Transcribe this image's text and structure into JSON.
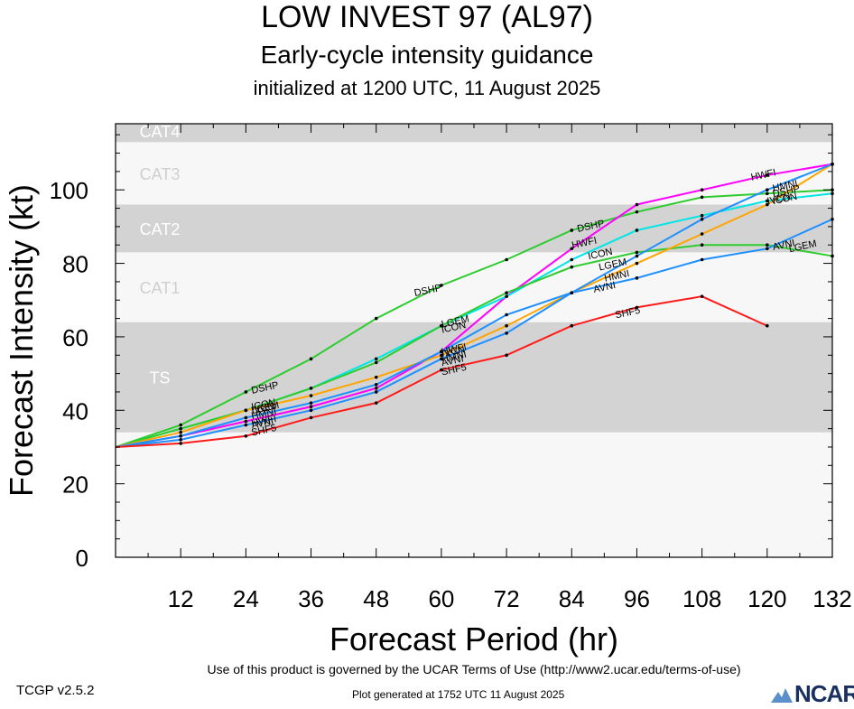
{
  "header": {
    "title": "LOW INVEST 97 (AL97)",
    "subtitle": "Early-cycle intensity guidance",
    "init": "initialized at 1200 UTC, 11 August 2025"
  },
  "footer": {
    "terms": "Use of this product is governed by the UCAR Terms of Use (http://www2.ucar.edu/terms-of-use)",
    "version": "TCGP v2.5.2",
    "generated": "Plot generated at 1752 UTC   11 August 2025",
    "logo_text": "NCAR"
  },
  "chart_data": {
    "type": "line",
    "xlabel": "Forecast Period (hr)",
    "ylabel": "Forecast Intensity (kt)",
    "xlim": [
      0,
      132
    ],
    "ylim": [
      0,
      118
    ],
    "xticks": [
      12,
      24,
      36,
      48,
      60,
      72,
      84,
      96,
      108,
      120,
      132
    ],
    "yticks": [
      0,
      20,
      40,
      60,
      80,
      100
    ],
    "bands": [
      {
        "label": "TS",
        "from": 34,
        "to": 64,
        "color": "#d3d3d3"
      },
      {
        "label": "CAT1",
        "from": 64,
        "to": 83,
        "color": "#f7f7f7"
      },
      {
        "label": "CAT2",
        "from": 83,
        "to": 96,
        "color": "#d3d3d3"
      },
      {
        "label": "CAT3",
        "from": 96,
        "to": 113,
        "color": "#f7f7f7"
      },
      {
        "label": "CAT4",
        "from": 113,
        "to": 118,
        "color": "#d3d3d3"
      }
    ],
    "series": [
      {
        "name": "DSHP",
        "color": "#2ecc2e",
        "points": [
          [
            0,
            30
          ],
          [
            12,
            36
          ],
          [
            24,
            45
          ],
          [
            36,
            54
          ],
          [
            48,
            65
          ],
          [
            60,
            74
          ],
          [
            72,
            81
          ],
          [
            84,
            89
          ],
          [
            96,
            94
          ],
          [
            108,
            98
          ],
          [
            120,
            99
          ],
          [
            132,
            100
          ]
        ],
        "labels": [
          [
            25,
            45.5
          ],
          [
            55,
            72
          ],
          [
            85,
            89.5
          ],
          [
            121,
            99
          ]
        ]
      },
      {
        "name": "HWFI",
        "color": "#ff00ff",
        "points": [
          [
            0,
            30
          ],
          [
            12,
            33
          ],
          [
            24,
            37
          ],
          [
            36,
            41
          ],
          [
            48,
            46
          ],
          [
            60,
            56
          ],
          [
            72,
            71
          ],
          [
            84,
            84
          ],
          [
            96,
            96
          ],
          [
            108,
            100
          ],
          [
            120,
            104
          ],
          [
            132,
            107
          ]
        ],
        "labels": [
          [
            25,
            36.5
          ],
          [
            60,
            56
          ],
          [
            84,
            85
          ],
          [
            117,
            103.5
          ]
        ]
      },
      {
        "name": "ICON",
        "color": "#00e5e5",
        "points": [
          [
            0,
            30
          ],
          [
            12,
            35
          ],
          [
            24,
            40
          ],
          [
            36,
            46
          ],
          [
            48,
            54
          ],
          [
            60,
            63
          ],
          [
            72,
            71
          ],
          [
            84,
            81
          ],
          [
            96,
            89
          ],
          [
            108,
            93
          ],
          [
            120,
            97
          ],
          [
            132,
            99
          ]
        ],
        "labels": [
          [
            25,
            41
          ],
          [
            60,
            62
          ],
          [
            87,
            82
          ],
          [
            121,
            97
          ]
        ]
      },
      {
        "name": "LGEM",
        "color": "#2ecc2e",
        "points": [
          [
            0,
            30
          ],
          [
            12,
            35
          ],
          [
            24,
            40
          ],
          [
            36,
            46
          ],
          [
            48,
            53
          ],
          [
            60,
            63
          ],
          [
            72,
            72
          ],
          [
            84,
            79
          ],
          [
            96,
            83
          ],
          [
            108,
            85
          ],
          [
            120,
            85
          ],
          [
            132,
            82
          ]
        ],
        "labels": [
          [
            25,
            40
          ],
          [
            60,
            63.5
          ],
          [
            89,
            79
          ],
          [
            124,
            84
          ]
        ]
      },
      {
        "name": "IVCN",
        "color": "#ffa500",
        "points": [
          [
            0,
            30
          ],
          [
            12,
            34
          ],
          [
            24,
            40
          ],
          [
            36,
            44
          ],
          [
            48,
            49
          ],
          [
            60,
            55
          ],
          [
            72,
            63
          ],
          [
            84,
            72
          ],
          [
            96,
            80
          ],
          [
            108,
            88
          ],
          [
            120,
            96
          ],
          [
            132,
            107
          ]
        ],
        "labels": [
          [
            25,
            40
          ],
          [
            60,
            55.5
          ],
          [
            120,
            97
          ]
        ]
      },
      {
        "name": "HMNI",
        "color": "#1e90ff",
        "points": [
          [
            0,
            30
          ],
          [
            12,
            33
          ],
          [
            24,
            38
          ],
          [
            36,
            42
          ],
          [
            48,
            47
          ],
          [
            60,
            56
          ],
          [
            72,
            66
          ],
          [
            84,
            72
          ],
          [
            96,
            82
          ],
          [
            108,
            92
          ],
          [
            120,
            100
          ],
          [
            132,
            107
          ]
        ],
        "labels": [
          [
            25,
            38.5
          ],
          [
            60,
            54
          ],
          [
            90,
            76
          ],
          [
            121,
            100.5
          ]
        ]
      },
      {
        "name": "AVNI",
        "color": "#1e90ff",
        "points": [
          [
            0,
            30
          ],
          [
            12,
            32
          ],
          [
            24,
            36
          ],
          [
            36,
            40
          ],
          [
            48,
            45
          ],
          [
            60,
            54
          ],
          [
            72,
            61
          ],
          [
            84,
            72
          ],
          [
            96,
            76
          ],
          [
            108,
            81
          ],
          [
            120,
            84
          ],
          [
            132,
            92
          ]
        ],
        "labels": [
          [
            25,
            36
          ],
          [
            60,
            53
          ],
          [
            88,
            73
          ],
          [
            121,
            84.5
          ]
        ]
      },
      {
        "name": "SHF5",
        "color": "#ff1a1a",
        "points": [
          [
            0,
            30
          ],
          [
            12,
            31
          ],
          [
            24,
            33
          ],
          [
            36,
            38
          ],
          [
            48,
            42
          ],
          [
            60,
            51
          ],
          [
            72,
            55
          ],
          [
            84,
            63
          ],
          [
            96,
            68
          ],
          [
            108,
            71
          ],
          [
            120,
            63
          ]
        ],
        "labels": [
          [
            25,
            34
          ],
          [
            60,
            50.5
          ],
          [
            92,
            66
          ]
        ]
      }
    ]
  }
}
